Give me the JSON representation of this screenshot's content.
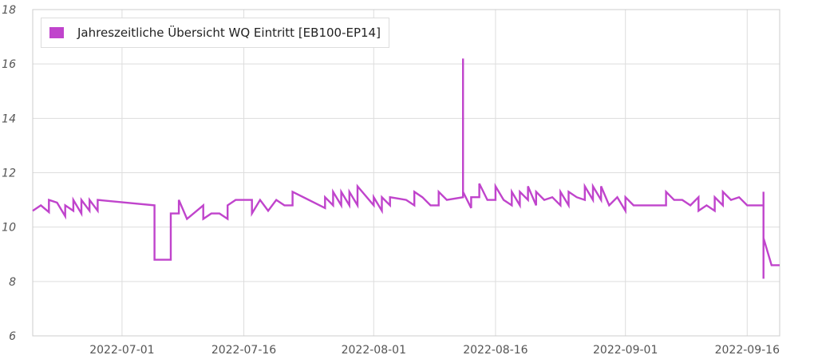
{
  "chart_data": {
    "type": "line",
    "ylim": [
      6,
      18
    ],
    "yticks": [
      "6",
      "8",
      "10",
      "12",
      "14",
      "16",
      "18"
    ],
    "xticks": [
      "2022-07-01",
      "2022-07-16",
      "2022-08-01",
      "2022-08-16",
      "2022-09-01",
      "2022-09-16"
    ],
    "xlim": [
      "2022-06-20",
      "2022-09-20"
    ],
    "grid": true,
    "legend": "top-left",
    "series": [
      {
        "name": "Jahreszeitliche Übersicht WQ Eintritt [EB100-EP14]",
        "color": "#c044cc",
        "points": [
          [
            "2022-06-20",
            10.6
          ],
          [
            "2022-06-21",
            10.8
          ],
          [
            "2022-06-22",
            10.55
          ],
          [
            "2022-06-22",
            11.0
          ],
          [
            "2022-06-23",
            10.9
          ],
          [
            "2022-06-24",
            10.4
          ],
          [
            "2022-06-24",
            10.8
          ],
          [
            "2022-06-25",
            10.6
          ],
          [
            "2022-06-25",
            11.0
          ],
          [
            "2022-06-26",
            10.5
          ],
          [
            "2022-06-26",
            11.0
          ],
          [
            "2022-06-27",
            10.6
          ],
          [
            "2022-06-27",
            11.0
          ],
          [
            "2022-06-28",
            10.6
          ],
          [
            "2022-06-28",
            11.0
          ],
          [
            "2022-07-05",
            10.8
          ],
          [
            "2022-07-05",
            8.8
          ],
          [
            "2022-07-07",
            8.8
          ],
          [
            "2022-07-07",
            10.5
          ],
          [
            "2022-07-08",
            10.5
          ],
          [
            "2022-07-08",
            11.0
          ],
          [
            "2022-07-09",
            10.3
          ],
          [
            "2022-07-11",
            10.8
          ],
          [
            "2022-07-11",
            10.3
          ],
          [
            "2022-07-12",
            10.5
          ],
          [
            "2022-07-13",
            10.5
          ],
          [
            "2022-07-14",
            10.3
          ],
          [
            "2022-07-14",
            10.8
          ],
          [
            "2022-07-15",
            11.0
          ],
          [
            "2022-07-17",
            11.0
          ],
          [
            "2022-07-17",
            10.5
          ],
          [
            "2022-07-18",
            11.0
          ],
          [
            "2022-07-19",
            10.6
          ],
          [
            "2022-07-20",
            11.0
          ],
          [
            "2022-07-21",
            10.8
          ],
          [
            "2022-07-22",
            10.8
          ],
          [
            "2022-07-22",
            11.3
          ],
          [
            "2022-07-26",
            10.7
          ],
          [
            "2022-07-26",
            11.1
          ],
          [
            "2022-07-27",
            10.8
          ],
          [
            "2022-07-27",
            11.3
          ],
          [
            "2022-07-28",
            10.8
          ],
          [
            "2022-07-28",
            11.3
          ],
          [
            "2022-07-29",
            10.8
          ],
          [
            "2022-07-29",
            11.3
          ],
          [
            "2022-07-30",
            10.8
          ],
          [
            "2022-07-30",
            11.5
          ],
          [
            "2022-08-01",
            10.8
          ],
          [
            "2022-08-01",
            11.1
          ],
          [
            "2022-08-02",
            10.6
          ],
          [
            "2022-08-02",
            11.1
          ],
          [
            "2022-08-03",
            10.8
          ],
          [
            "2022-08-03",
            11.1
          ],
          [
            "2022-08-05",
            11.0
          ],
          [
            "2022-08-06",
            10.8
          ],
          [
            "2022-08-06",
            11.3
          ],
          [
            "2022-08-07",
            11.1
          ],
          [
            "2022-08-08",
            10.8
          ],
          [
            "2022-08-09",
            10.8
          ],
          [
            "2022-08-09",
            11.3
          ],
          [
            "2022-08-10",
            11.0
          ],
          [
            "2022-08-12",
            11.1
          ],
          [
            "2022-08-12",
            16.2
          ],
          [
            "2022-08-12",
            11.3
          ],
          [
            "2022-08-13",
            10.7
          ],
          [
            "2022-08-13",
            11.1
          ],
          [
            "2022-08-14",
            11.1
          ],
          [
            "2022-08-14",
            11.6
          ],
          [
            "2022-08-15",
            11.0
          ],
          [
            "2022-08-16",
            11.0
          ],
          [
            "2022-08-16",
            11.5
          ],
          [
            "2022-08-17",
            11.0
          ],
          [
            "2022-08-18",
            10.8
          ],
          [
            "2022-08-18",
            11.3
          ],
          [
            "2022-08-19",
            10.8
          ],
          [
            "2022-08-19",
            11.3
          ],
          [
            "2022-08-20",
            11.0
          ],
          [
            "2022-08-20",
            11.5
          ],
          [
            "2022-08-21",
            10.8
          ],
          [
            "2022-08-21",
            11.3
          ],
          [
            "2022-08-22",
            11.0
          ],
          [
            "2022-08-23",
            11.1
          ],
          [
            "2022-08-24",
            10.8
          ],
          [
            "2022-08-24",
            11.3
          ],
          [
            "2022-08-25",
            10.8
          ],
          [
            "2022-08-25",
            11.3
          ],
          [
            "2022-08-26",
            11.1
          ],
          [
            "2022-08-27",
            11.0
          ],
          [
            "2022-08-27",
            11.5
          ],
          [
            "2022-08-28",
            11.0
          ],
          [
            "2022-08-28",
            11.5
          ],
          [
            "2022-08-29",
            11.0
          ],
          [
            "2022-08-29",
            11.5
          ],
          [
            "2022-08-30",
            10.8
          ],
          [
            "2022-08-31",
            11.1
          ],
          [
            "2022-09-01",
            10.6
          ],
          [
            "2022-09-01",
            11.1
          ],
          [
            "2022-09-02",
            10.8
          ],
          [
            "2022-09-06",
            10.8
          ],
          [
            "2022-09-06",
            11.3
          ],
          [
            "2022-09-07",
            11.0
          ],
          [
            "2022-09-08",
            11.0
          ],
          [
            "2022-09-09",
            10.8
          ],
          [
            "2022-09-10",
            11.1
          ],
          [
            "2022-09-10",
            10.6
          ],
          [
            "2022-09-11",
            10.8
          ],
          [
            "2022-09-12",
            10.6
          ],
          [
            "2022-09-12",
            11.1
          ],
          [
            "2022-09-13",
            10.8
          ],
          [
            "2022-09-13",
            11.3
          ],
          [
            "2022-09-14",
            11.0
          ],
          [
            "2022-09-15",
            11.1
          ],
          [
            "2022-09-16",
            10.8
          ],
          [
            "2022-09-18",
            10.8
          ],
          [
            "2022-09-18",
            11.3
          ],
          [
            "2022-09-18",
            8.1
          ],
          [
            "2022-09-18",
            9.6
          ],
          [
            "2022-09-19",
            8.6
          ],
          [
            "2022-09-20",
            8.6
          ]
        ]
      }
    ]
  }
}
